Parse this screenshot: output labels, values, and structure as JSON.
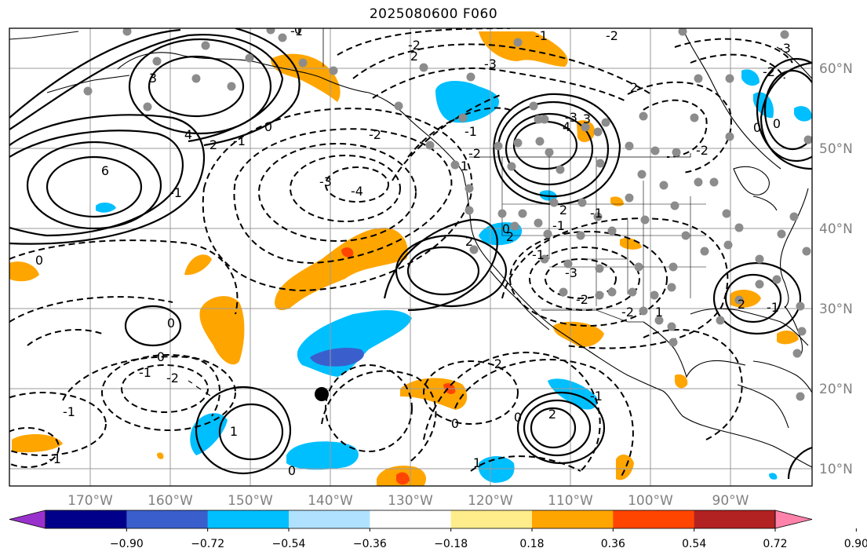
{
  "title": "2025080600 F060",
  "longitude_labels": [
    "170°W",
    "160°W",
    "150°W",
    "140°W",
    "130°W",
    "120°W",
    "110°W",
    "100°W",
    "90°W"
  ],
  "latitude_labels": [
    "60°N",
    "50°N",
    "40°N",
    "30°N",
    "20°N",
    "10°N"
  ],
  "colorbar": {
    "tick_labels": [
      "−0.90",
      "−0.72",
      "−0.54",
      "−0.36",
      "−0.18",
      "0.18",
      "0.36",
      "0.54",
      "0.72",
      "0.90"
    ],
    "colors": [
      "#9932cc",
      "#00008b",
      "#3a5fcd",
      "#00bfff",
      "#b0e2ff",
      "#ffffff",
      "#ffec8b",
      "#ffa500",
      "#ff4500",
      "#b22222",
      "#ff82ab"
    ]
  },
  "contour_labels": [
    "-1",
    "0",
    "-3",
    "3",
    "-2",
    "2",
    "4",
    "6",
    "-1",
    "0",
    "-3",
    "-4",
    "-2",
    "2",
    "-1",
    "0",
    "-1",
    "1",
    "-2",
    "2",
    "-3",
    "3",
    "4",
    "2",
    "-1",
    "-1",
    "0",
    "-1",
    "2",
    "-2",
    "-3",
    "0",
    "-1",
    "0",
    "-2",
    "1",
    "0",
    "-1",
    "-1",
    "1",
    "0",
    "-2",
    "2",
    "-1",
    "0",
    "-2",
    "1",
    "-1",
    "2",
    "-2",
    "-3",
    "0",
    "0",
    "-2",
    "-1",
    "-2",
    "2"
  ],
  "map_features": [
    "coastlines",
    "country-borders",
    "state-borders",
    "gridlines",
    "station-markers",
    "tropical-storm-marker"
  ]
}
